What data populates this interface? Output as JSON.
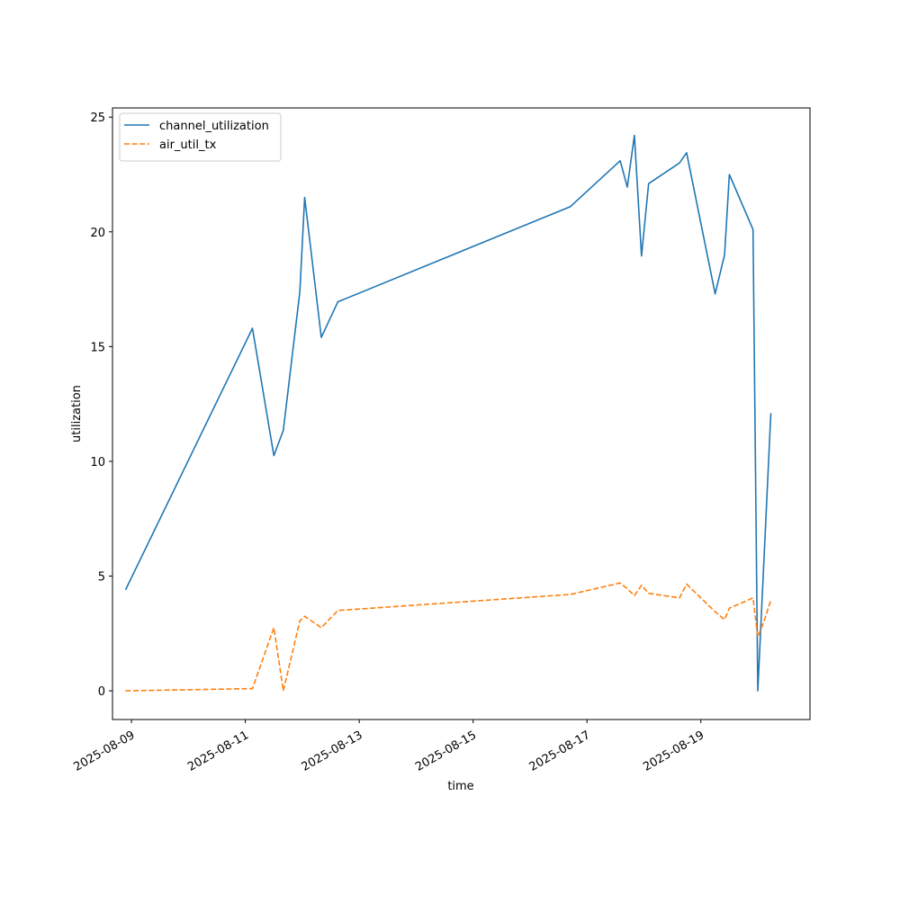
{
  "chart_data": {
    "type": "line",
    "xlabel": "time",
    "ylabel": "utilization",
    "x_ticks": [
      "2025-08-09",
      "2025-08-11",
      "2025-08-13",
      "2025-08-15",
      "2025-08-17",
      "2025-08-19"
    ],
    "y_ticks": [
      0,
      5,
      10,
      15,
      20,
      25
    ],
    "xlim": [
      "2025-08-08 16:00",
      "2025-08-20 22:00"
    ],
    "ylim": [
      -1.25,
      25.4
    ],
    "grid": false,
    "legend": "top-left",
    "x": [
      "2025-08-08 21:30",
      "2025-08-11 03:00",
      "2025-08-11 12:00",
      "2025-08-11 16:00",
      "2025-08-11 23:00",
      "2025-08-12 01:00",
      "2025-08-12 08:00",
      "2025-08-12 15:00",
      "2025-08-16 17:00",
      "2025-08-17 14:00",
      "2025-08-17 17:00",
      "2025-08-17 20:00",
      "2025-08-17 23:00",
      "2025-08-18 02:00",
      "2025-08-18 15:00",
      "2025-08-18 18:00",
      "2025-08-19 06:00",
      "2025-08-19 10:00",
      "2025-08-19 12:00",
      "2025-08-19 22:00",
      "2025-08-20 00:00",
      "2025-08-20 02:30",
      "2025-08-20 05:30"
    ],
    "series": [
      {
        "name": "channel_utilization",
        "color": "#1f77b4",
        "style": "solid",
        "values": [
          4.4,
          15.8,
          10.25,
          11.35,
          17.4,
          21.5,
          15.4,
          16.95,
          21.1,
          23.1,
          21.95,
          24.2,
          18.95,
          22.1,
          23.0,
          23.45,
          17.3,
          19.0,
          22.5,
          20.1,
          0.0,
          5.5,
          12.1
        ]
      },
      {
        "name": "air_util_tx",
        "color": "#ff7f0e",
        "style": "dashed",
        "values": [
          0.0,
          0.1,
          2.75,
          0.0,
          3.05,
          3.25,
          2.75,
          3.5,
          4.2,
          4.7,
          4.45,
          4.15,
          4.6,
          4.25,
          4.05,
          4.65,
          3.45,
          3.1,
          3.6,
          4.05,
          2.35,
          3.0,
          3.95
        ]
      }
    ]
  }
}
